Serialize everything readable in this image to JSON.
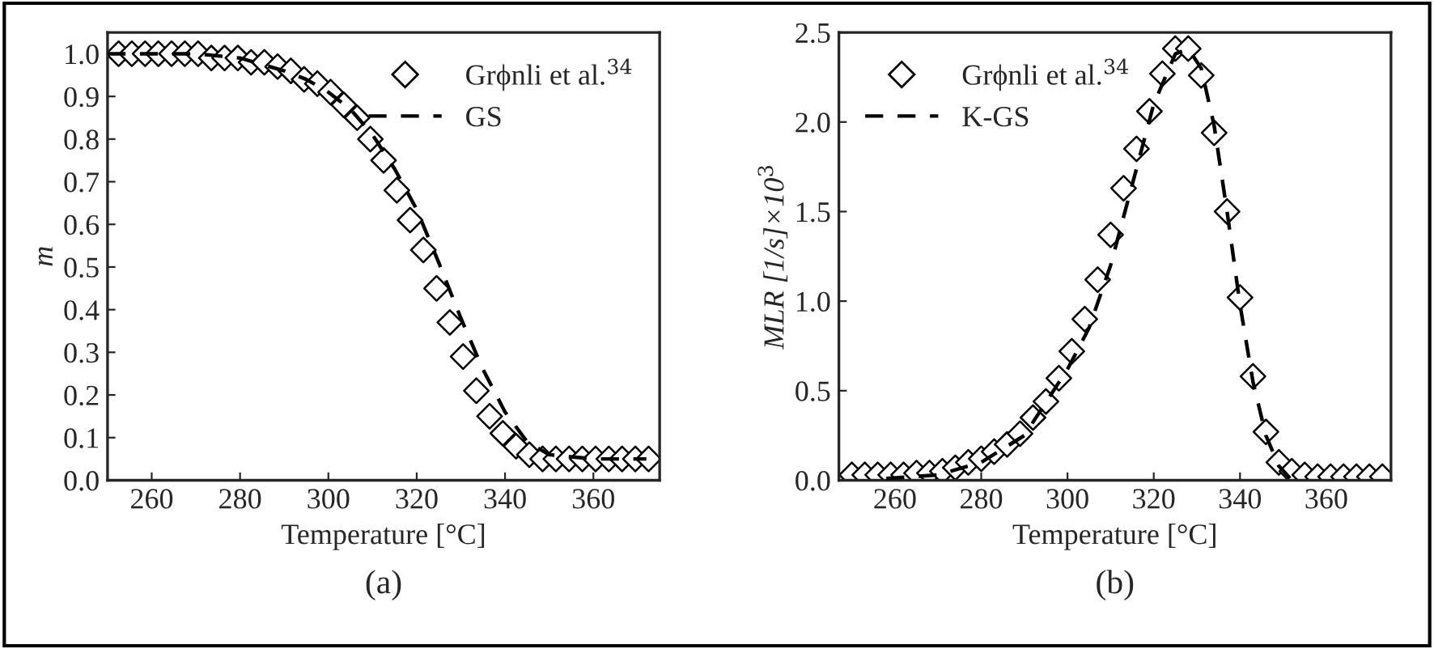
{
  "chart_data": [
    {
      "type": "line",
      "xlabel": "Temperature [°C]",
      "ylabel": "m",
      "xlim": [
        250,
        375
      ],
      "ylim": [
        0,
        1.05
      ],
      "xticks": [
        260,
        280,
        300,
        320,
        340,
        360
      ],
      "yticks": [
        {
          "value": 0,
          "label": "0.0"
        },
        0.1,
        0.2,
        0.3,
        0.4,
        0.5,
        0.6,
        0.7,
        0.8,
        0.9,
        {
          "value": 1,
          "label": "1.0"
        }
      ],
      "grid": false,
      "legend": "top right",
      "annotations": [
        "(a)"
      ],
      "series": [
        {
          "name": "Grϕnli et al.$^{34}$",
          "type": "scatter",
          "marker": "diamond",
          "color": "#000000",
          "x": [
            252.5,
            255.5,
            258.5,
            261.5,
            264.5,
            267.5,
            270.5,
            273.5,
            276.5,
            279.5,
            282.5,
            285.5,
            288.5,
            291.5,
            294.5,
            297.5,
            300.5,
            303.5,
            306.5,
            309.5,
            312.5,
            315.5,
            318.5,
            321.5,
            324.5,
            327.5,
            330.5,
            333.5,
            336.5,
            339.5,
            342.5,
            345.5,
            348.5,
            351.5,
            354.5,
            357.5,
            360.5,
            363.5,
            366.5,
            369.5,
            372.5
          ],
          "values": [
            1.0,
            1.0,
            1.0,
            1.0,
            1.0,
            1.0,
            1.0,
            0.99,
            0.99,
            0.99,
            0.98,
            0.98,
            0.97,
            0.96,
            0.94,
            0.93,
            0.91,
            0.88,
            0.85,
            0.8,
            0.75,
            0.68,
            0.61,
            0.54,
            0.45,
            0.37,
            0.29,
            0.21,
            0.15,
            0.11,
            0.08,
            0.06,
            0.05,
            0.05,
            0.05,
            0.05,
            0.05,
            0.05,
            0.05,
            0.05,
            0.05
          ]
        },
        {
          "name": "GS",
          "line_style": "dashed",
          "marker": "none",
          "color": "#000000",
          "x": [
            250,
            260,
            270,
            280,
            290,
            295,
            300,
            305,
            310,
            315,
            320,
            325,
            330,
            335,
            340,
            345,
            350,
            360,
            372
          ],
          "values": [
            1.0,
            1.0,
            1.0,
            0.99,
            0.96,
            0.94,
            0.91,
            0.87,
            0.81,
            0.73,
            0.635,
            0.51,
            0.38,
            0.26,
            0.16,
            0.09,
            0.06,
            0.05,
            0.05
          ]
        }
      ]
    },
    {
      "type": "line",
      "xlabel": "Temperature [°C]",
      "ylabel": "MLR [1/s]×10$^{3}$",
      "xlim": [
        247,
        375
      ],
      "ylim": [
        0,
        2.5
      ],
      "xticks": [
        260,
        280,
        300,
        320,
        340,
        360
      ],
      "yticks": [
        {
          "value": 0,
          "label": "0.0"
        },
        0.5,
        {
          "value": 1,
          "label": "1.0"
        },
        1.5,
        {
          "value": 2,
          "label": "2.0"
        },
        2.5
      ],
      "grid": false,
      "legend": "top left",
      "annotations": [
        "(b)"
      ],
      "series": [
        {
          "name": "Grϕnli et al.$^{34}$",
          "type": "scatter",
          "marker": "diamond",
          "color": "#000000",
          "x": [
            250,
            253,
            256,
            259,
            262,
            265,
            268,
            271,
            274,
            277,
            280,
            283,
            286,
            289,
            292,
            295,
            298,
            301,
            304,
            307,
            310,
            313,
            316,
            319,
            322,
            325,
            328,
            331,
            334,
            337,
            340,
            343,
            346,
            349,
            352,
            355,
            358,
            361,
            364,
            367,
            370,
            373
          ],
          "values": [
            0.03,
            0.03,
            0.03,
            0.03,
            0.03,
            0.04,
            0.04,
            0.05,
            0.07,
            0.1,
            0.12,
            0.16,
            0.2,
            0.26,
            0.35,
            0.44,
            0.57,
            0.72,
            0.9,
            1.12,
            1.37,
            1.63,
            1.85,
            2.06,
            2.27,
            2.41,
            2.41,
            2.26,
            1.94,
            1.5,
            1.02,
            0.58,
            0.27,
            0.1,
            0.05,
            0.03,
            0.02,
            0.02,
            0.02,
            0.02,
            0.02,
            0.02
          ]
        },
        {
          "name": "K-GS",
          "line_style": "dashed",
          "marker": "none",
          "color": "#000000",
          "x": [
            258,
            270,
            280,
            290,
            300,
            305,
            310,
            315,
            320,
            325,
            328,
            331,
            334,
            337,
            340,
            343,
            346,
            349,
            352
          ],
          "values": [
            0.01,
            0.03,
            0.1,
            0.25,
            0.62,
            0.85,
            1.2,
            1.65,
            2.1,
            2.38,
            2.41,
            2.3,
            1.98,
            1.5,
            0.98,
            0.55,
            0.25,
            0.08,
            0.0
          ]
        }
      ]
    }
  ]
}
